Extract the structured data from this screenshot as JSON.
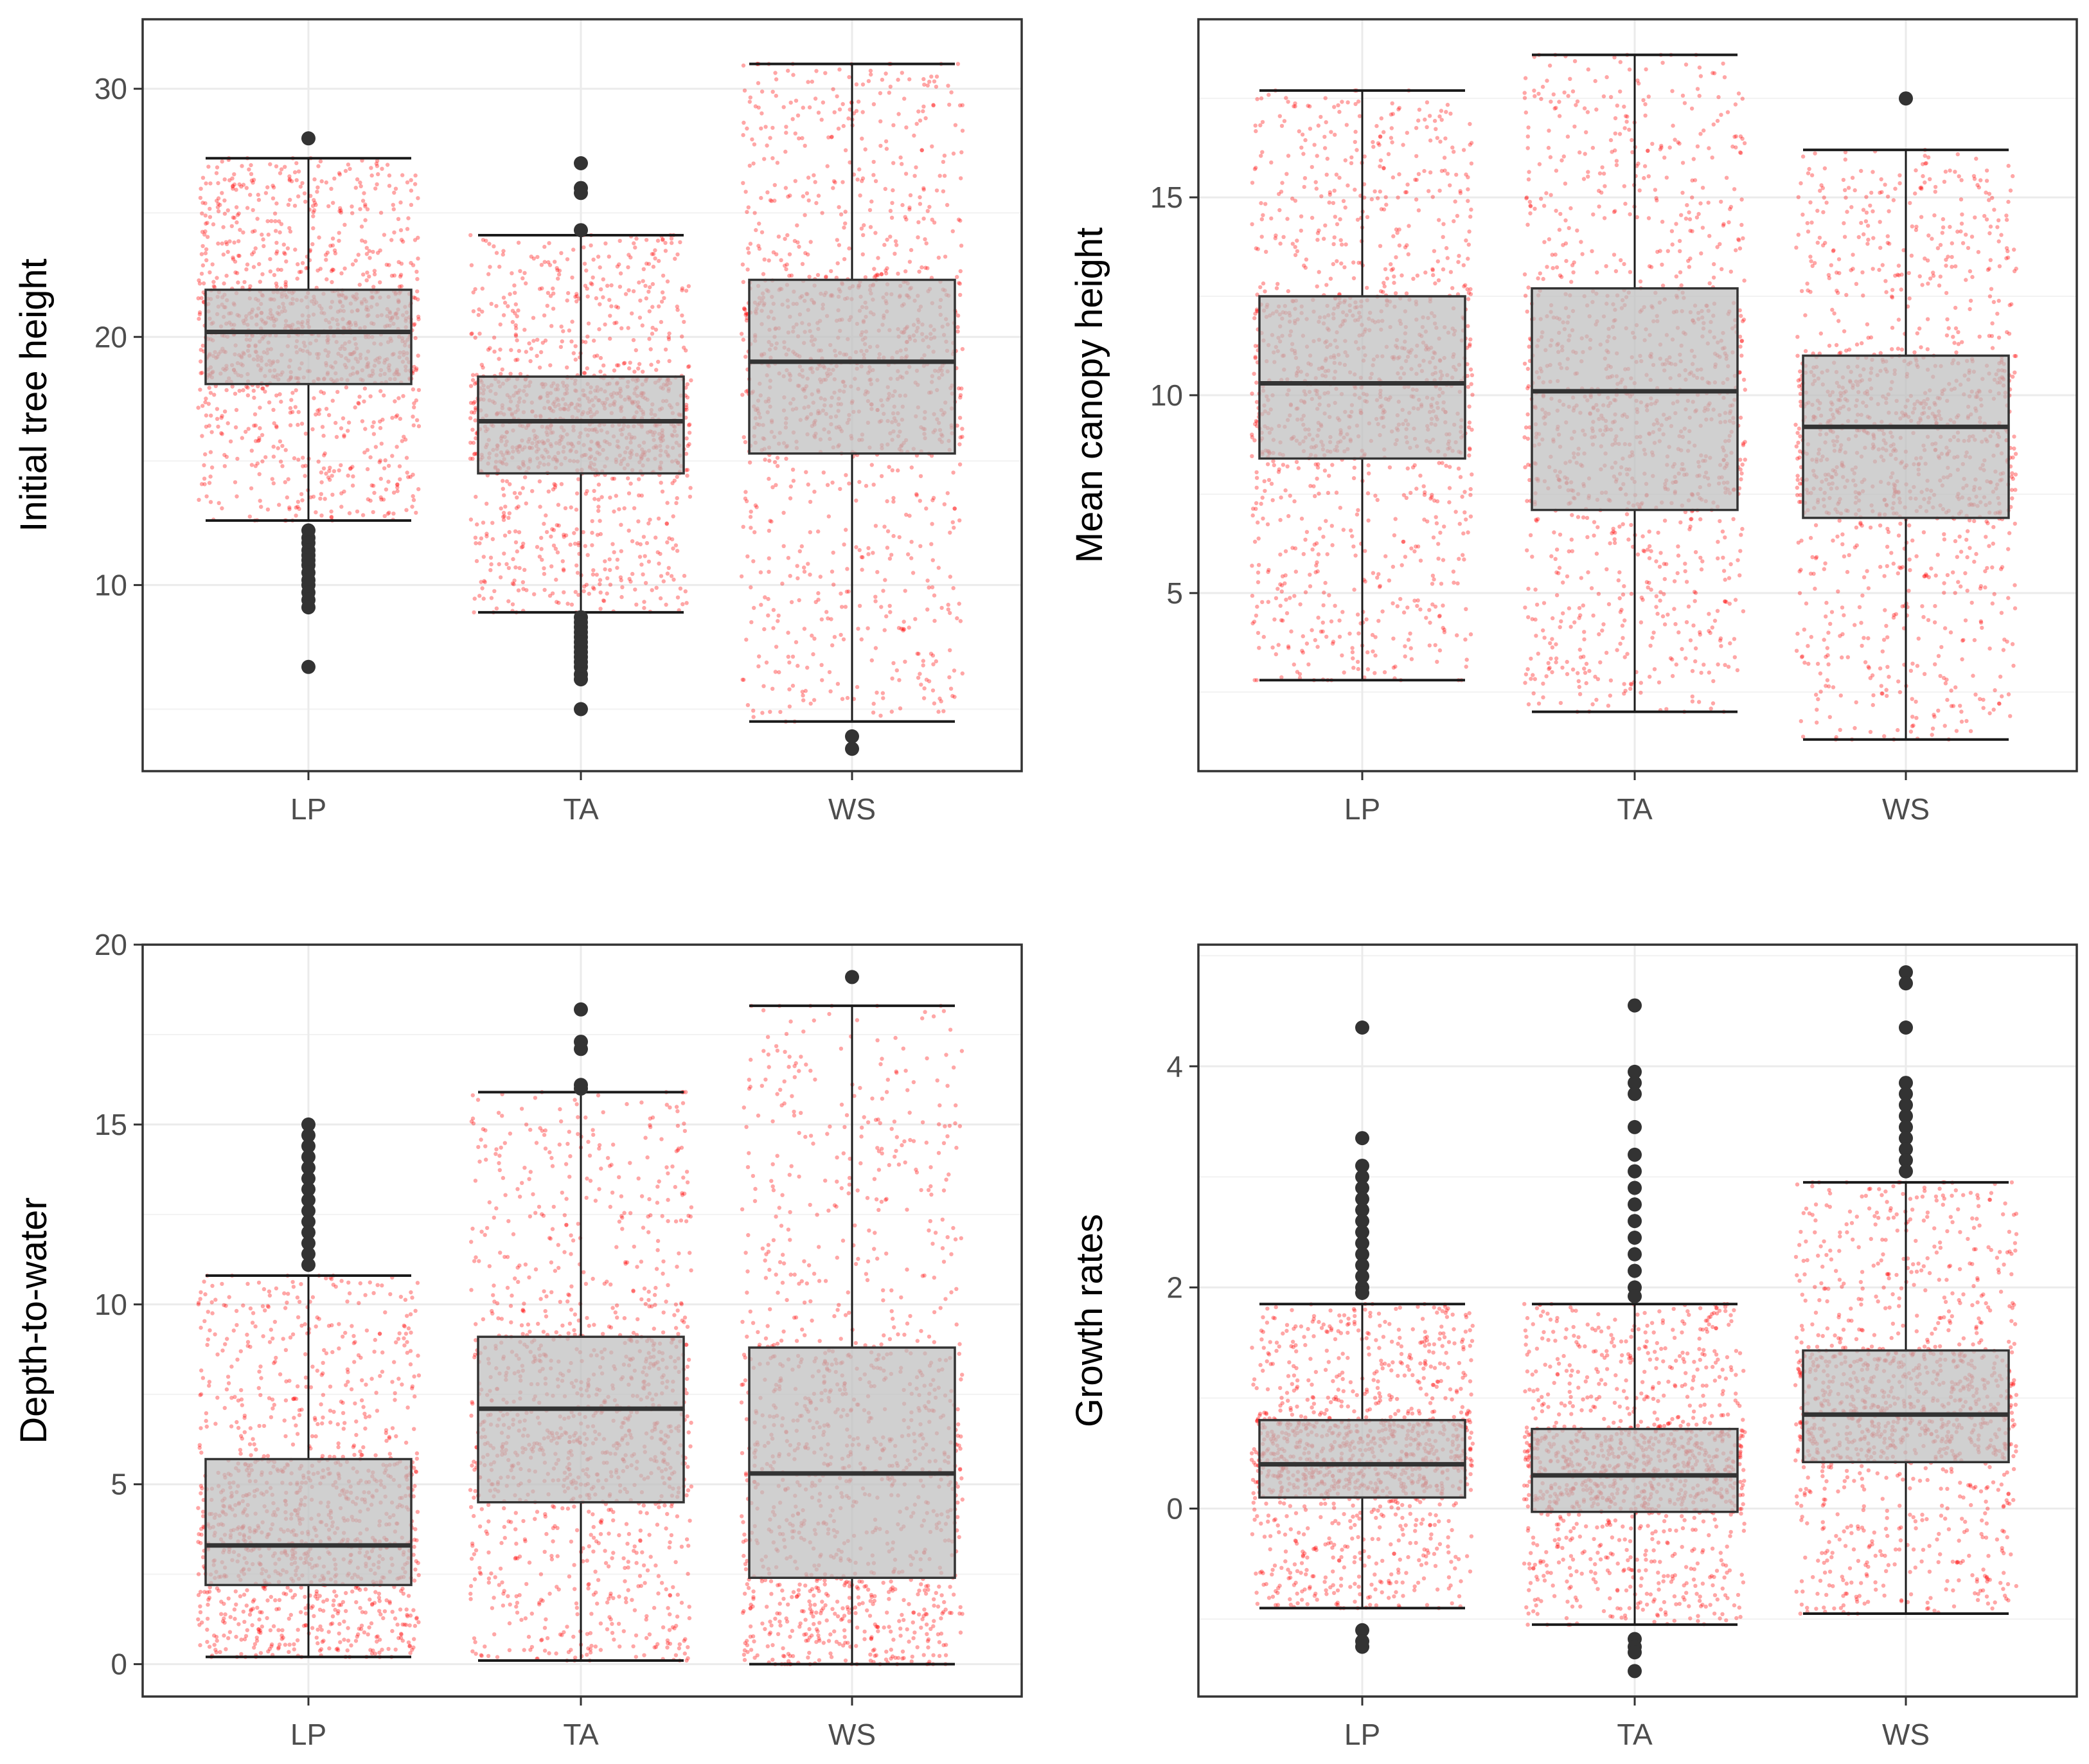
{
  "chart_data": [
    {
      "type": "box",
      "title": "",
      "xlabel": "",
      "ylabel": "Initial tree height",
      "categories": [
        "LP",
        "TA",
        "WS"
      ],
      "ylim": [
        2.5,
        32.8
      ],
      "yticks": [
        10,
        20,
        30
      ],
      "yticks_minor": [
        5,
        15,
        25
      ],
      "boxes": [
        {
          "category": "LP",
          "whisker_low": 12.6,
          "q1": 18.1,
          "median": 20.2,
          "q3": 21.9,
          "whisker_high": 27.2,
          "outliers": [
            28.0,
            12.2,
            11.9,
            11.7,
            11.4,
            11.2,
            11.0,
            10.8,
            10.5,
            10.2,
            10.0,
            9.7,
            9.4,
            9.1,
            6.7
          ]
        },
        {
          "category": "TA",
          "whisker_low": 8.9,
          "q1": 14.5,
          "median": 16.6,
          "q3": 18.4,
          "whisker_high": 24.1,
          "outliers": [
            27.0,
            26.0,
            25.8,
            24.3,
            8.7,
            8.5,
            8.3,
            8.1,
            7.9,
            7.7,
            7.5,
            7.3,
            7.1,
            6.9,
            6.7,
            6.4,
            6.2,
            5.0
          ]
        },
        {
          "category": "WS",
          "whisker_low": 4.5,
          "q1": 15.3,
          "median": 19.0,
          "q3": 22.3,
          "whisker_high": 31.0,
          "outliers": [
            3.9,
            3.4
          ]
        }
      ],
      "jitter_points_per_group": 1200,
      "jitter_color": "#ff0000",
      "box_fill": "#bebebe",
      "box_stroke": "#333333"
    },
    {
      "type": "box",
      "title": "",
      "xlabel": "",
      "ylabel": "Mean canopy height",
      "categories": [
        "LP",
        "TA",
        "WS"
      ],
      "ylim": [
        0.5,
        19.5
      ],
      "yticks": [
        5,
        10,
        15
      ],
      "yticks_minor": [
        2.5,
        7.5,
        12.5,
        17.5
      ],
      "boxes": [
        {
          "category": "LP",
          "whisker_low": 2.8,
          "q1": 8.4,
          "median": 10.3,
          "q3": 12.5,
          "whisker_high": 17.7,
          "outliers": []
        },
        {
          "category": "TA",
          "whisker_low": 2.0,
          "q1": 7.1,
          "median": 10.1,
          "q3": 12.7,
          "whisker_high": 18.6,
          "outliers": []
        },
        {
          "category": "WS",
          "whisker_low": 1.3,
          "q1": 6.9,
          "median": 9.2,
          "q3": 11.0,
          "whisker_high": 16.2,
          "outliers": [
            17.5
          ]
        }
      ],
      "jitter_points_per_group": 1200,
      "jitter_color": "#ff0000",
      "box_fill": "#bebebe",
      "box_stroke": "#333333"
    },
    {
      "type": "box",
      "title": "",
      "xlabel": "",
      "ylabel": "Depth-to-water",
      "categories": [
        "LP",
        "TA",
        "WS"
      ],
      "ylim": [
        -0.9,
        20.0
      ],
      "yticks": [
        0,
        5,
        10,
        15,
        20
      ],
      "yticks_minor": [
        2.5,
        7.5,
        12.5,
        17.5
      ],
      "boxes": [
        {
          "category": "LP",
          "whisker_low": 0.2,
          "q1": 2.2,
          "median": 3.3,
          "q3": 5.7,
          "whisker_high": 10.8,
          "outliers": [
            15.0,
            14.7,
            14.4,
            14.1,
            13.8,
            13.5,
            13.2,
            12.9,
            12.6,
            12.3,
            12.0,
            11.7,
            11.4,
            11.1
          ]
        },
        {
          "category": "TA",
          "whisker_low": 0.1,
          "q1": 4.5,
          "median": 7.1,
          "q3": 9.1,
          "whisker_high": 15.9,
          "outliers": [
            18.2,
            17.3,
            17.1,
            16.1,
            16.0
          ]
        },
        {
          "category": "WS",
          "whisker_low": 0.0,
          "q1": 2.4,
          "median": 5.3,
          "q3": 8.8,
          "whisker_high": 18.3,
          "outliers": [
            19.1
          ]
        }
      ],
      "jitter_points_per_group": 1200,
      "jitter_color": "#ff0000",
      "box_fill": "#bebebe",
      "box_stroke": "#333333"
    },
    {
      "type": "box",
      "title": "",
      "xlabel": "",
      "ylabel": "Growth rates",
      "categories": [
        "LP",
        "TA",
        "WS"
      ],
      "ylim": [
        -1.7,
        5.1
      ],
      "yticks": [
        0,
        2,
        4
      ],
      "yticks_minor": [
        -1,
        1,
        3,
        5
      ],
      "boxes": [
        {
          "category": "LP",
          "whisker_low": -0.9,
          "q1": 0.1,
          "median": 0.4,
          "q3": 0.8,
          "whisker_high": 1.85,
          "outliers": [
            4.35,
            3.35,
            3.1,
            3.0,
            2.9,
            2.8,
            2.7,
            2.6,
            2.5,
            2.4,
            2.3,
            2.2,
            2.1,
            2.0,
            1.95,
            -1.1,
            -1.2,
            -1.25
          ]
        },
        {
          "category": "TA",
          "whisker_low": -1.05,
          "q1": -0.03,
          "median": 0.3,
          "q3": 0.72,
          "whisker_high": 1.85,
          "outliers": [
            4.55,
            3.95,
            3.85,
            3.75,
            3.45,
            3.2,
            3.05,
            2.9,
            2.75,
            2.6,
            2.45,
            2.3,
            2.15,
            2.0,
            1.92,
            -1.18,
            -1.25,
            -1.3,
            -1.47
          ]
        },
        {
          "category": "WS",
          "whisker_low": -0.95,
          "q1": 0.42,
          "median": 0.85,
          "q3": 1.43,
          "whisker_high": 2.95,
          "outliers": [
            4.85,
            4.75,
            4.35,
            3.85,
            3.75,
            3.65,
            3.55,
            3.45,
            3.35,
            3.25,
            3.15,
            3.05
          ]
        }
      ],
      "jitter_points_per_group": 1200,
      "jitter_color": "#ff0000",
      "box_fill": "#bebebe",
      "box_stroke": "#333333"
    }
  ]
}
